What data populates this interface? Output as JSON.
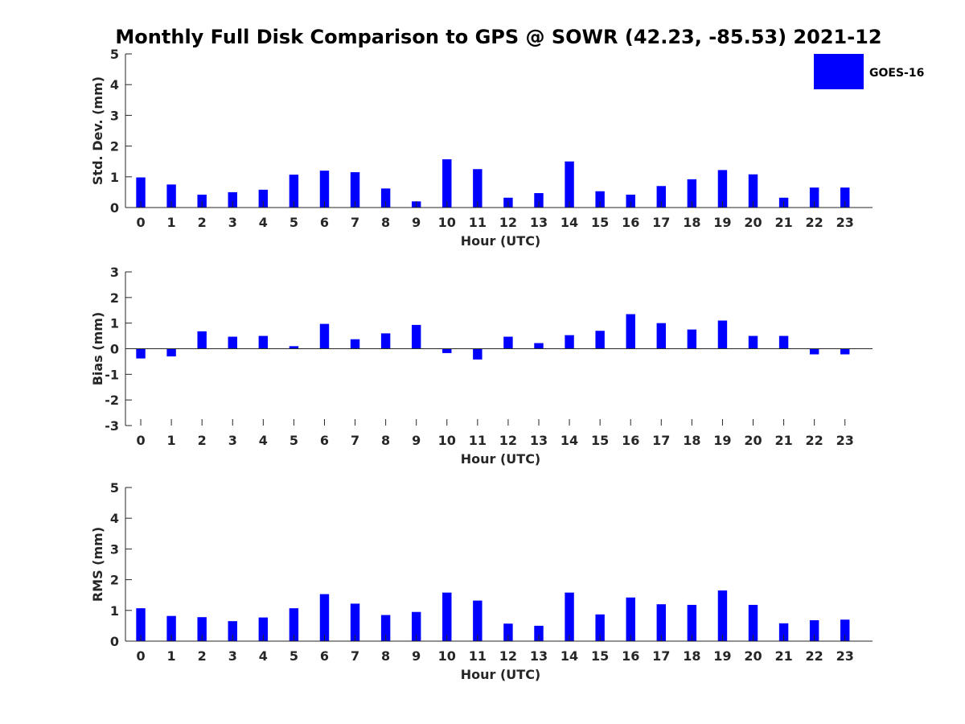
{
  "chart_data": [
    {
      "type": "bar",
      "title": "Monthly Full Disk Comparison to GPS @ SOWR (42.23, -85.53) 2021-12",
      "xlabel": "Hour (UTC)",
      "ylabel": "Std. Dev. (mm)",
      "ylim": [
        0,
        5
      ],
      "yticks": [
        "0",
        "1",
        "2",
        "3",
        "4",
        "5"
      ],
      "categories": [
        "0",
        "1",
        "2",
        "3",
        "4",
        "5",
        "6",
        "7",
        "8",
        "9",
        "10",
        "11",
        "12",
        "13",
        "14",
        "15",
        "16",
        "17",
        "18",
        "19",
        "20",
        "21",
        "22",
        "23"
      ],
      "series": [
        {
          "name": "GOES-16",
          "color": "#0000ff",
          "values": [
            0.98,
            0.75,
            0.42,
            0.5,
            0.58,
            1.07,
            1.2,
            1.15,
            0.62,
            0.2,
            1.57,
            1.25,
            0.32,
            0.47,
            1.5,
            0.53,
            0.42,
            0.7,
            0.92,
            1.22,
            1.08,
            0.32,
            0.65,
            0.65
          ]
        }
      ],
      "legend": {
        "position": "top-right"
      }
    },
    {
      "type": "bar",
      "title": "",
      "xlabel": "Hour (UTC)",
      "ylabel": "Bias (mm)",
      "ylim": [
        -3,
        3
      ],
      "yticks": [
        "-3",
        "-2",
        "-1",
        "0",
        "1",
        "2",
        "3"
      ],
      "categories": [
        "0",
        "1",
        "2",
        "3",
        "4",
        "5",
        "6",
        "7",
        "8",
        "9",
        "10",
        "11",
        "12",
        "13",
        "14",
        "15",
        "16",
        "17",
        "18",
        "19",
        "20",
        "21",
        "22",
        "23"
      ],
      "series": [
        {
          "name": "GOES-16",
          "color": "#0000ff",
          "values": [
            -0.38,
            -0.3,
            0.68,
            0.47,
            0.5,
            0.1,
            0.97,
            0.37,
            0.6,
            0.93,
            -0.17,
            -0.42,
            0.47,
            0.22,
            0.53,
            0.7,
            1.35,
            1.0,
            0.75,
            1.1,
            0.5,
            0.5,
            -0.22,
            -0.22
          ]
        }
      ]
    },
    {
      "type": "bar",
      "title": "",
      "xlabel": "Hour (UTC)",
      "ylabel": "RMS (mm)",
      "ylim": [
        0,
        5
      ],
      "yticks": [
        "0",
        "1",
        "2",
        "3",
        "4",
        "5"
      ],
      "categories": [
        "0",
        "1",
        "2",
        "3",
        "4",
        "5",
        "6",
        "7",
        "8",
        "9",
        "10",
        "11",
        "12",
        "13",
        "14",
        "15",
        "16",
        "17",
        "18",
        "19",
        "20",
        "21",
        "22",
        "23"
      ],
      "series": [
        {
          "name": "GOES-16",
          "color": "#0000ff",
          "values": [
            1.07,
            0.82,
            0.78,
            0.65,
            0.77,
            1.07,
            1.53,
            1.22,
            0.85,
            0.95,
            1.58,
            1.32,
            0.57,
            0.5,
            1.58,
            0.87,
            1.42,
            1.2,
            1.18,
            1.65,
            1.18,
            0.58,
            0.68,
            0.7
          ]
        }
      ]
    }
  ]
}
